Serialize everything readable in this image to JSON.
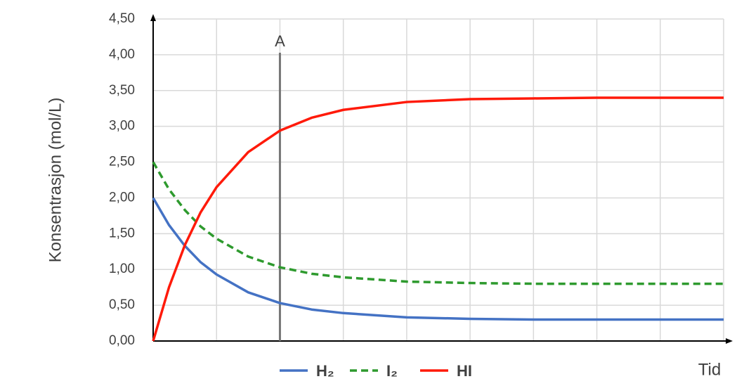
{
  "chart_data": {
    "type": "line",
    "y_label": "Konsentrasjon (mol/L)",
    "x_label": "Tid",
    "x": [
      0,
      0.25,
      0.5,
      0.75,
      1,
      1.5,
      2,
      2.5,
      3,
      4,
      5,
      6,
      7,
      8,
      9
    ],
    "xlim": [
      0,
      9
    ],
    "xticks": [
      0,
      1,
      2,
      3,
      4,
      5,
      6,
      7,
      8,
      9
    ],
    "ylim": [
      0,
      4.5
    ],
    "yticks": [
      {
        "value": 0,
        "label": "0,00"
      },
      {
        "value": 0.5,
        "label": "0,50"
      },
      {
        "value": 1,
        "label": "1,00"
      },
      {
        "value": 1.5,
        "label": "1,50"
      },
      {
        "value": 2,
        "label": "2,00"
      },
      {
        "value": 2.5,
        "label": "2,50"
      },
      {
        "value": 3,
        "label": "3,00"
      },
      {
        "value": 3.5,
        "label": "3,50"
      },
      {
        "value": 4,
        "label": "4,00"
      },
      {
        "value": 4.5,
        "label": "4,50"
      }
    ],
    "grid": true,
    "legend": "bottom",
    "annotation": {
      "label": "A",
      "x": 2
    },
    "series": [
      {
        "name": "H₂",
        "color": "#4472c4",
        "dash": false,
        "values": [
          2.0,
          1.62,
          1.33,
          1.1,
          0.93,
          0.68,
          0.53,
          0.44,
          0.39,
          0.33,
          0.31,
          0.3,
          0.3,
          0.3,
          0.3
        ]
      },
      {
        "name": "I₂",
        "color": "#2e9a2e",
        "dash": true,
        "values": [
          2.5,
          2.12,
          1.83,
          1.6,
          1.43,
          1.18,
          1.03,
          0.94,
          0.89,
          0.83,
          0.81,
          0.8,
          0.8,
          0.8,
          0.8
        ]
      },
      {
        "name": "HI",
        "color": "#ff1a0a",
        "dash": false,
        "values": [
          0,
          0.75,
          1.34,
          1.8,
          2.15,
          2.64,
          2.94,
          3.12,
          3.23,
          3.34,
          3.38,
          3.39,
          3.4,
          3.4,
          3.4
        ]
      }
    ]
  }
}
